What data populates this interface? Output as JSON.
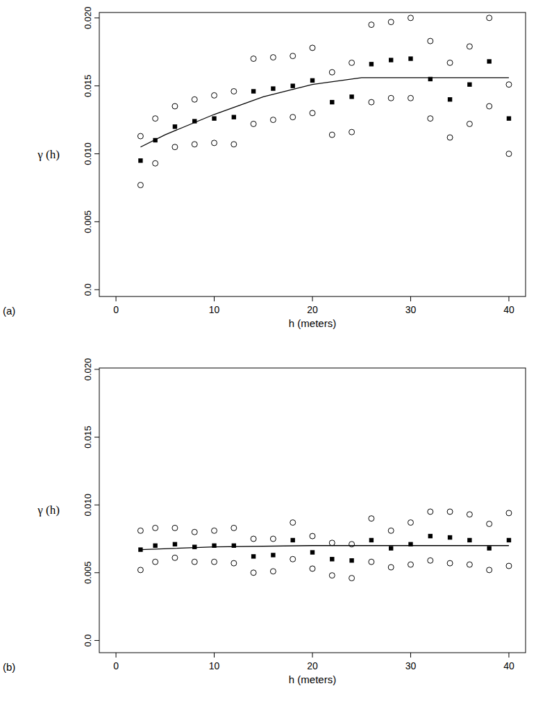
{
  "chart_data": [
    {
      "type": "scatter",
      "panel_label": "(a)",
      "x_label": "h (meters)",
      "y_label": "γ (h)",
      "xlim": [
        -1.7,
        41.7
      ],
      "ylim": [
        -0.0005,
        0.0204
      ],
      "xticks": [
        0,
        10,
        20,
        30,
        40
      ],
      "yticks": [
        {
          "value": 0,
          "label": "0.0"
        },
        0.005,
        {
          "value": 0.01,
          "label": "0.010"
        },
        0.015,
        {
          "value": 0.02,
          "label": "0.020"
        }
      ],
      "series": [
        {
          "marker": "square",
          "color": "#000000",
          "x": [
            2.5,
            4,
            6,
            8,
            10,
            12,
            14,
            16,
            18,
            20,
            22,
            24,
            26,
            28,
            30,
            32,
            34,
            36,
            38,
            40
          ],
          "values": [
            0.0095,
            0.011,
            0.012,
            0.0124,
            0.0126,
            0.0127,
            0.0146,
            0.0148,
            0.015,
            0.0154,
            0.0138,
            0.0142,
            0.0166,
            0.0169,
            0.017,
            0.0155,
            0.014,
            0.0151,
            0.0168,
            0.0126
          ]
        },
        {
          "marker": "circle",
          "color": "#000000",
          "x": [
            2.5,
            4,
            6,
            8,
            10,
            12,
            14,
            16,
            18,
            20,
            22,
            24,
            26,
            28,
            30,
            32,
            34,
            36,
            38,
            40
          ],
          "values": [
            0.0113,
            0.0126,
            0.0135,
            0.014,
            0.0143,
            0.0146,
            0.017,
            0.0171,
            0.0172,
            0.0178,
            0.016,
            0.0167,
            0.0195,
            0.0197,
            0.02,
            0.0183,
            0.0167,
            0.0179,
            0.02,
            0.0151
          ]
        },
        {
          "marker": "circle",
          "color": "#000000",
          "x": [
            2.5,
            4,
            6,
            8,
            10,
            12,
            14,
            16,
            18,
            20,
            22,
            24,
            26,
            28,
            30,
            32,
            34,
            36,
            38,
            40
          ],
          "values": [
            0.0077,
            0.0093,
            0.0105,
            0.0107,
            0.0108,
            0.0107,
            0.0122,
            0.0125,
            0.0127,
            0.013,
            0.0114,
            0.0116,
            0.0138,
            0.0141,
            0.0141,
            0.0126,
            0.0112,
            0.0122,
            0.0135,
            0.01
          ]
        },
        {
          "type": "line",
          "line_style": "solid",
          "color": "#000000",
          "x": [
            2.5,
            5,
            10,
            15,
            20,
            25,
            26,
            30,
            35,
            40
          ],
          "values": [
            0.0105,
            0.0114,
            0.0129,
            0.0142,
            0.0151,
            0.0156,
            0.0156,
            0.0156,
            0.0156,
            0.0156
          ]
        }
      ]
    },
    {
      "type": "scatter",
      "panel_label": "(b)",
      "x_label": "h (meters)",
      "y_label": "γ (h)",
      "xlim": [
        -1.7,
        41.7
      ],
      "ylim": [
        -0.0009,
        0.0201
      ],
      "xticks": [
        0,
        10,
        20,
        30,
        40
      ],
      "yticks": [
        {
          "value": 0,
          "label": "0.0"
        },
        0.005,
        {
          "value": 0.01,
          "label": "0.010"
        },
        0.015,
        {
          "value": 0.02,
          "label": "0.020"
        }
      ],
      "series": [
        {
          "marker": "square",
          "color": "#000000",
          "x": [
            2.5,
            4,
            6,
            8,
            10,
            12,
            14,
            16,
            18,
            20,
            22,
            24,
            26,
            28,
            30,
            32,
            34,
            36,
            38,
            40
          ],
          "values": [
            0.0067,
            0.007,
            0.0071,
            0.0069,
            0.007,
            0.007,
            0.0062,
            0.0063,
            0.0074,
            0.0065,
            0.006,
            0.0059,
            0.0074,
            0.0068,
            0.0071,
            0.0077,
            0.0076,
            0.0074,
            0.0068,
            0.0074
          ]
        },
        {
          "marker": "circle",
          "color": "#000000",
          "x": [
            2.5,
            4,
            6,
            8,
            10,
            12,
            14,
            16,
            18,
            20,
            22,
            24,
            26,
            28,
            30,
            32,
            34,
            36,
            38,
            40
          ],
          "values": [
            0.0081,
            0.0083,
            0.0083,
            0.008,
            0.0081,
            0.0083,
            0.0075,
            0.0075,
            0.0087,
            0.0077,
            0.0072,
            0.0071,
            0.009,
            0.0081,
            0.0087,
            0.0095,
            0.0095,
            0.0093,
            0.0086,
            0.0094
          ]
        },
        {
          "marker": "circle",
          "color": "#000000",
          "x": [
            2.5,
            4,
            6,
            8,
            10,
            12,
            14,
            16,
            18,
            20,
            22,
            24,
            26,
            28,
            30,
            32,
            34,
            36,
            38,
            40
          ],
          "values": [
            0.0052,
            0.0058,
            0.0061,
            0.0058,
            0.0058,
            0.0057,
            0.005,
            0.0051,
            0.006,
            0.0053,
            0.0048,
            0.0046,
            0.0058,
            0.0054,
            0.0056,
            0.0059,
            0.0057,
            0.0056,
            0.0052,
            0.0055
          ]
        },
        {
          "type": "line",
          "line_style": "solid",
          "color": "#000000",
          "x": [
            2.5,
            10,
            20,
            30,
            40
          ],
          "values": [
            0.0067,
            0.0069,
            0.007,
            0.007,
            0.007
          ]
        }
      ]
    }
  ]
}
